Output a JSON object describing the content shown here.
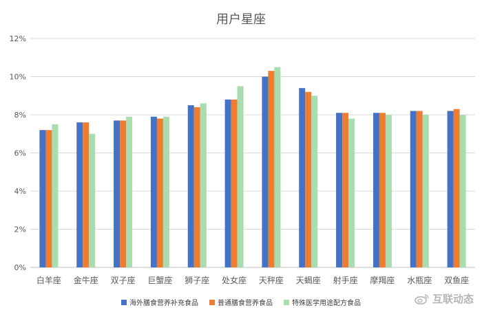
{
  "colors": {
    "series": [
      "#4472C4",
      "#ED7D31",
      "#A9DDB0"
    ],
    "axis": "#BFBFBF",
    "grid": "#D9D9D9",
    "tick_text": "#595959"
  },
  "watermark": {
    "icon": "weibo-logo-icon",
    "text": "互联动态"
  },
  "chart_data": {
    "type": "bar",
    "title": "用户星座",
    "categories": [
      "白羊座",
      "金牛座",
      "双子座",
      "巨蟹座",
      "狮子座",
      "处女座",
      "天秤座",
      "天蝎座",
      "射手座",
      "摩羯座",
      "水瓶座",
      "双鱼座"
    ],
    "series": [
      {
        "name": "海外膳食营养补充食品",
        "values": [
          7.2,
          7.6,
          7.7,
          7.9,
          8.5,
          8.8,
          10.0,
          9.4,
          8.1,
          8.1,
          8.2,
          8.2
        ]
      },
      {
        "name": "普通膳食营养食品",
        "values": [
          7.2,
          7.6,
          7.7,
          7.8,
          8.4,
          8.8,
          10.3,
          9.2,
          8.1,
          8.1,
          8.2,
          8.3
        ]
      },
      {
        "name": "特殊医学用途配方食品",
        "values": [
          7.5,
          7.0,
          7.9,
          7.9,
          8.6,
          9.5,
          10.5,
          9.0,
          7.8,
          8.0,
          8.0,
          8.0
        ]
      }
    ],
    "y_ticks": [
      "0%",
      "2%",
      "4%",
      "6%",
      "8%",
      "10%",
      "12%"
    ],
    "ylim": [
      0,
      12
    ],
    "y_unit": "percent",
    "grid": true,
    "legend_position": "bottom"
  }
}
